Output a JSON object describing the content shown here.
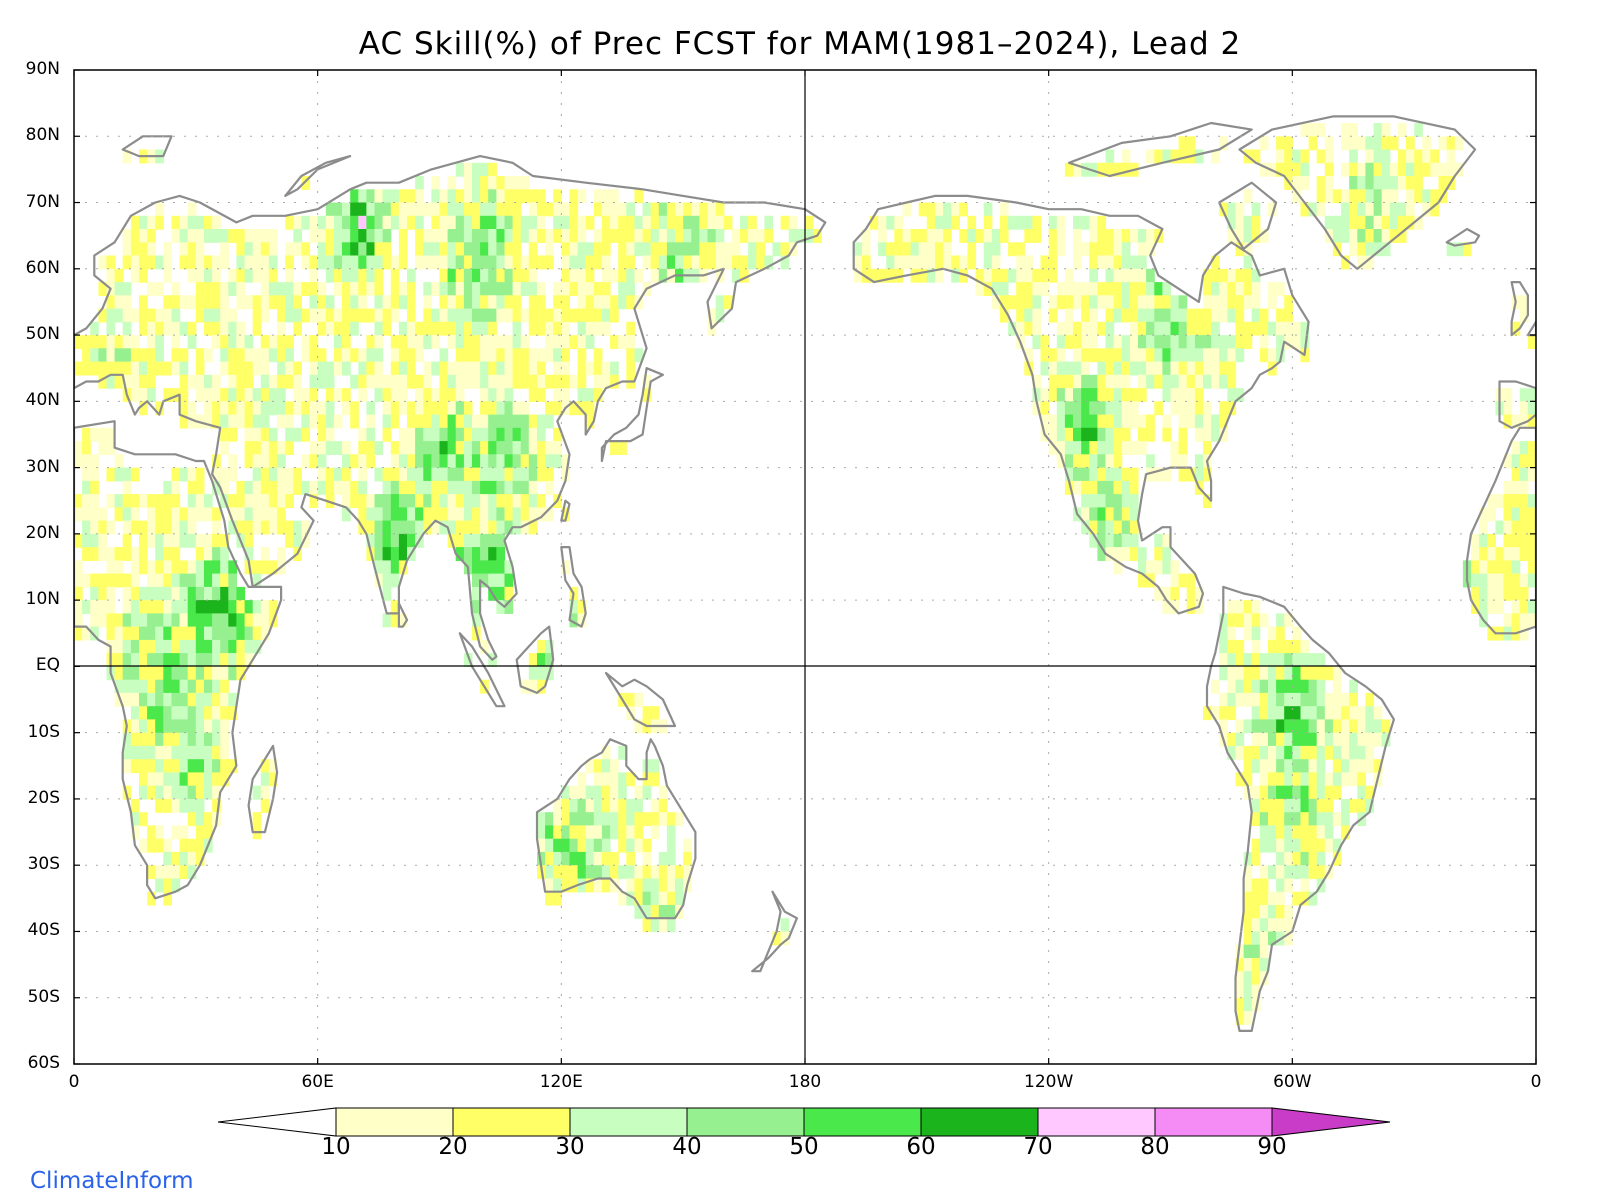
{
  "title": "AC Skill(%) of Prec FCST for MAM(1981–2024), Lead 2",
  "brand": "ClimateInform",
  "lat_ticks": [
    "90N",
    "80N",
    "70N",
    "60N",
    "50N",
    "40N",
    "30N",
    "20N",
    "10N",
    "EQ",
    "10S",
    "20S",
    "30S",
    "40S",
    "50S",
    "60S"
  ],
  "lon_ticks": [
    "0",
    "60E",
    "120E",
    "180",
    "120W",
    "60W",
    "0"
  ],
  "colorbar": {
    "labels": [
      "10",
      "20",
      "30",
      "40",
      "50",
      "60",
      "70",
      "80",
      "90"
    ],
    "colors": [
      "#ffffff",
      "#ffffc8",
      "#ffff66",
      "#c8ffc0",
      "#96f090",
      "#4ae84a",
      "#1cb41c",
      "#ffc8ff",
      "#f58cf5",
      "#c83cc8"
    ]
  },
  "colors": {
    "land_outline": "#8c8c8c",
    "grid": "#aaaaaa",
    "us_states": "#000000"
  }
}
